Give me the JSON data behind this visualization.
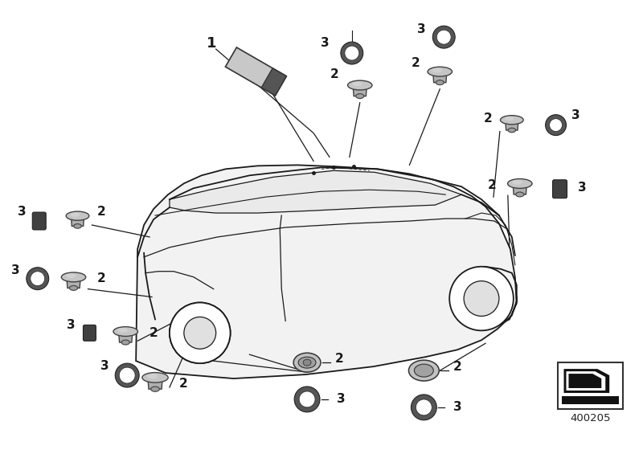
{
  "bg_color": "#ffffff",
  "line_color": "#1a1a1a",
  "car_fill": "#f5f5f5",
  "sensor_fill": "#b8b8b8",
  "sensor_dark": "#888888",
  "ring_fill": "#444444",
  "unit1_light": "#cccccc",
  "unit1_dark": "#555555",
  "part_number": "400205",
  "fig_width": 8.0,
  "fig_height": 5.6
}
